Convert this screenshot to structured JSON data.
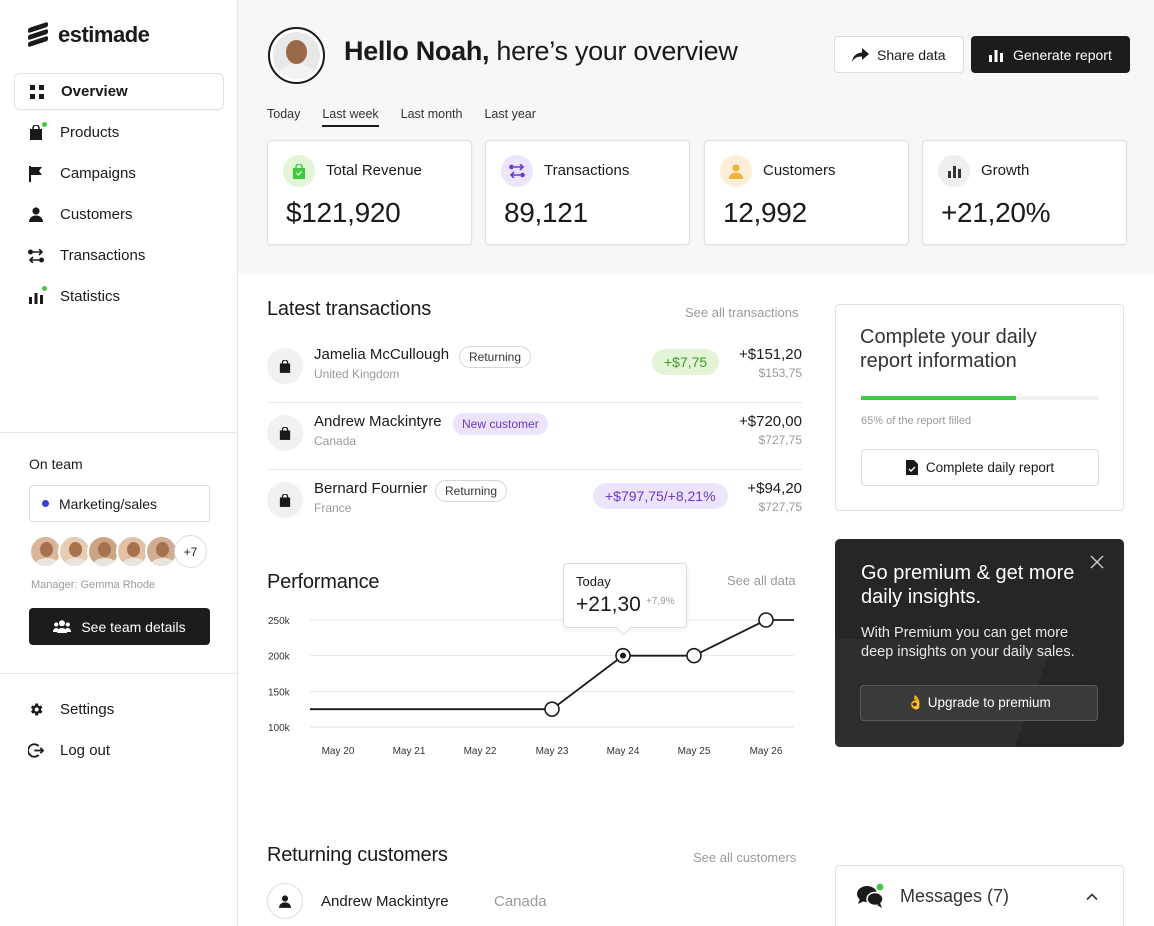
{
  "brand": {
    "name": "estimade"
  },
  "sidebar": {
    "items": [
      {
        "label": "Overview",
        "icon": "grid-icon",
        "active": true
      },
      {
        "label": "Products",
        "icon": "bag-icon",
        "notify": true
      },
      {
        "label": "Campaigns",
        "icon": "flag-icon"
      },
      {
        "label": "Customers",
        "icon": "person-icon"
      },
      {
        "label": "Transactions",
        "icon": "transfer-icon"
      },
      {
        "label": "Statistics",
        "icon": "bar-chart-icon",
        "notify": true
      }
    ],
    "team": {
      "title": "On team",
      "selected": "Marketing/sales",
      "more_count": "+7",
      "manager": "Manager: Gemma Rhode",
      "button": "See team details"
    },
    "bottom": [
      {
        "label": "Settings",
        "icon": "gear-icon"
      },
      {
        "label": "Log out",
        "icon": "logout-icon"
      }
    ]
  },
  "header": {
    "greeting_name": "Hello Noah,",
    "greeting_rest": " here’s your overview",
    "share_label": "Share data",
    "report_label": "Generate report"
  },
  "range_tabs": [
    {
      "label": "Today"
    },
    {
      "label": "Last week",
      "active": true
    },
    {
      "label": "Last month"
    },
    {
      "label": "Last year"
    }
  ],
  "stats": [
    {
      "label": "Total Revenue",
      "value": "$121,920",
      "icon": "bag-icon",
      "color": "#e2f5d6",
      "fg": "#3ec93e"
    },
    {
      "label": "Transactions",
      "value": "89,121",
      "icon": "transfer-icon",
      "color": "#ece4fb",
      "fg": "#6a39c9"
    },
    {
      "label": "Customers",
      "value": "12,992",
      "icon": "person-icon",
      "color": "#fdefd7",
      "fg": "#f2b33d"
    },
    {
      "label": "Growth",
      "value": "+21,20%",
      "icon": "bar-chart-icon",
      "color": "#efefef",
      "fg": "#333333"
    }
  ],
  "latest": {
    "title": "Latest transactions",
    "link": "See all transactions",
    "rows": [
      {
        "name": "Jamelia McCullough",
        "country": "United Kingdom",
        "badge": "Returning",
        "badge_style": "outline",
        "delta": "+$7,75",
        "delta_style": "green",
        "amount": "+$151,20",
        "sub": "$153,75"
      },
      {
        "name": "Andrew Mackintyre",
        "country": "Canada",
        "badge": "New customer",
        "badge_style": "purple",
        "delta": "",
        "delta_style": "",
        "amount": "+$720,00",
        "sub": "$727,75"
      },
      {
        "name": "Bernard Fournier",
        "country": "France",
        "badge": "Returning",
        "badge_style": "outline",
        "delta": "+$797,75/+8,21%",
        "delta_style": "purple",
        "amount": "+$94,20",
        "sub": "$727,75"
      }
    ]
  },
  "report": {
    "title": "Complete your daily report information",
    "progress": 0.65,
    "progress_text": "65% of the report filled",
    "button": "Complete daily report"
  },
  "premium": {
    "title": "Go premium & get more daily insights.",
    "text": "With Premium you can get more deep insights on your daily sales.",
    "button": "👌 Upgrade to premium"
  },
  "performance": {
    "title": "Performance",
    "link": "See all data",
    "tooltip": {
      "label": "Today",
      "value": "+21,30",
      "delta": "+7,9%"
    }
  },
  "chart_data": {
    "type": "line",
    "x": [
      "May 20",
      "May 21",
      "May 22",
      "May 23",
      "May 24",
      "May 25",
      "May 26"
    ],
    "values": [
      125,
      125,
      125,
      125,
      200,
      200,
      250
    ],
    "yticks": [
      "250k",
      "200k",
      "150k",
      "100k"
    ],
    "ytick_values": [
      250,
      200,
      150,
      100
    ],
    "ylim": [
      100,
      250
    ],
    "grid": true,
    "marked": [
      3,
      4,
      5,
      6
    ],
    "highlight": 4
  },
  "returning": {
    "title": "Returning customers",
    "link": "See all customers",
    "rows": [
      {
        "name": "Andrew Mackintyre",
        "country": "Canada"
      }
    ]
  },
  "messages": {
    "label": "Messages (7)"
  }
}
